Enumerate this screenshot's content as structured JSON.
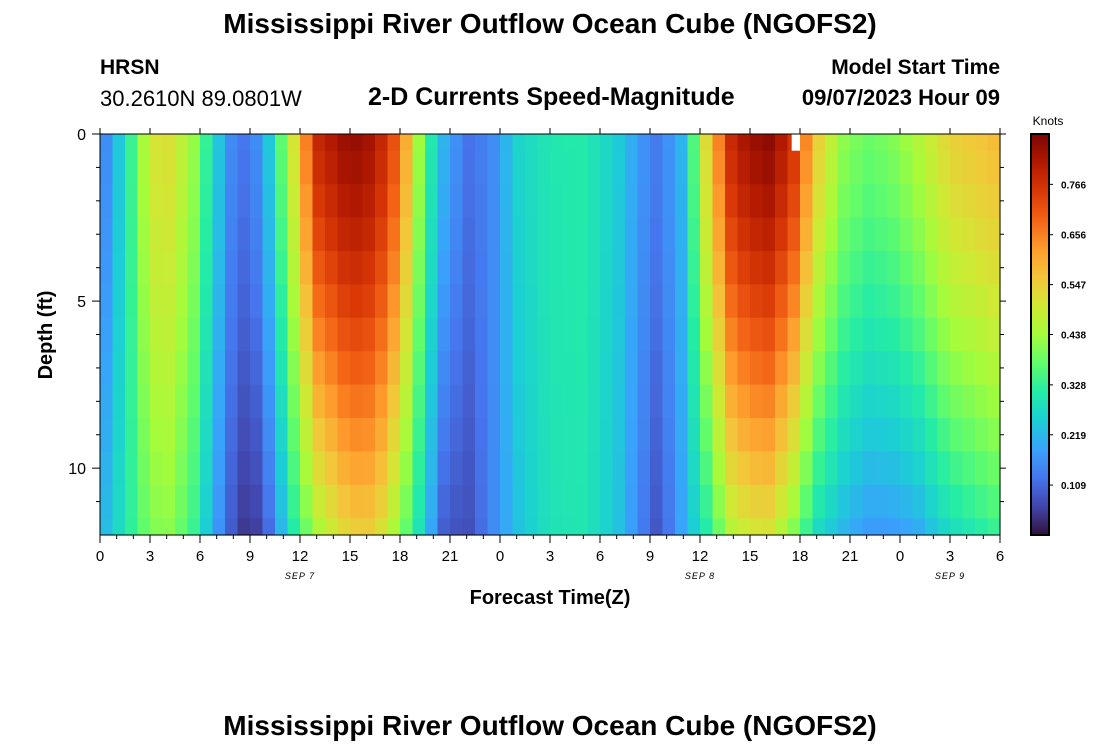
{
  "header": {
    "title": "Mississippi River Outflow Ocean Cube (NGOFS2)",
    "station": "HRSN",
    "coords": "30.2610N  89.0801W",
    "subtitle": "2-D Currents Speed-Magnitude",
    "model_start_label": "Model Start Time",
    "model_start_value": "09/07/2023 Hour 09"
  },
  "footer": {
    "title": "Mississippi River Outflow Ocean Cube (NGOFS2)"
  },
  "colors": {
    "colormap": [
      "#30123b",
      "#4145ab",
      "#4675ed",
      "#39a2fc",
      "#1bcfd4",
      "#24eca6",
      "#61fc6c",
      "#a4fc3b",
      "#d1e834",
      "#f3c63a",
      "#fe9b2d",
      "#f36315",
      "#d93806",
      "#b11901",
      "#7a0403"
    ],
    "missing": "#ffffff"
  },
  "chart_data": {
    "type": "heatmap",
    "xlabel": "Forecast Time(Z)",
    "ylabel": "Depth (ft)",
    "xlim": [
      0,
      54
    ],
    "ylim": [
      0,
      12
    ],
    "y_inverted": true,
    "x_tick_labels": [
      "0",
      "3",
      "6",
      "9",
      "12",
      "15",
      "18",
      "21",
      "0",
      "3",
      "6",
      "9",
      "12",
      "15",
      "18",
      "21",
      "0",
      "3",
      "6"
    ],
    "x_tick_hours": [
      0,
      3,
      6,
      9,
      12,
      15,
      18,
      21,
      24,
      27,
      30,
      33,
      36,
      39,
      42,
      45,
      48,
      51,
      54
    ],
    "date_labels": [
      {
        "label": "SEP 7",
        "hour": 12
      },
      {
        "label": "SEP 8",
        "hour": 36
      },
      {
        "label": "SEP 9",
        "hour": 51
      }
    ],
    "y_tick_labels": [
      "0",
      "5",
      "10"
    ],
    "y_tick_values": [
      0,
      5,
      10
    ],
    "colorbar": {
      "title": "Knots",
      "range": [
        0,
        0.876
      ],
      "tick_labels": [
        "0.766",
        "0.656",
        "0.547",
        "0.438",
        "0.328",
        "0.219",
        "0.109"
      ],
      "tick_values": [
        0.766,
        0.656,
        0.547,
        0.438,
        0.328,
        0.219,
        0.109
      ]
    },
    "grid": {
      "dx_hours": 0.75,
      "depths": [
        0,
        1,
        2,
        3,
        4,
        5,
        6,
        7,
        8,
        9,
        10,
        11,
        12
      ]
    },
    "speed_profiles": [
      {
        "hour": 0,
        "surface": 0.12,
        "bottom": 0.2
      },
      {
        "hour": 1.5,
        "surface": 0.28,
        "bottom": 0.3
      },
      {
        "hour": 3,
        "surface": 0.5,
        "bottom": 0.4
      },
      {
        "hour": 4,
        "surface": 0.52,
        "bottom": 0.42
      },
      {
        "hour": 5.5,
        "surface": 0.44,
        "bottom": 0.35
      },
      {
        "hour": 7,
        "surface": 0.25,
        "bottom": 0.18
      },
      {
        "hour": 8,
        "surface": 0.14,
        "bottom": 0.08
      },
      {
        "hour": 9,
        "surface": 0.12,
        "bottom": 0.03
      },
      {
        "hour": 10,
        "surface": 0.22,
        "bottom": 0.1
      },
      {
        "hour": 11.5,
        "surface": 0.48,
        "bottom": 0.3
      },
      {
        "hour": 13,
        "surface": 0.78,
        "bottom": 0.45
      },
      {
        "hour": 15,
        "surface": 0.85,
        "bottom": 0.55
      },
      {
        "hour": 16.5,
        "surface": 0.82,
        "bottom": 0.55
      },
      {
        "hour": 18,
        "surface": 0.68,
        "bottom": 0.42
      },
      {
        "hour": 19.5,
        "surface": 0.35,
        "bottom": 0.25
      },
      {
        "hour": 20.5,
        "surface": 0.22,
        "bottom": 0.1
      },
      {
        "hour": 22,
        "surface": 0.12,
        "bottom": 0.07
      },
      {
        "hour": 23.5,
        "surface": 0.15,
        "bottom": 0.15
      },
      {
        "hour": 25,
        "surface": 0.26,
        "bottom": 0.23
      },
      {
        "hour": 27,
        "surface": 0.3,
        "bottom": 0.29
      },
      {
        "hour": 29,
        "surface": 0.31,
        "bottom": 0.3
      },
      {
        "hour": 31,
        "surface": 0.25,
        "bottom": 0.24
      },
      {
        "hour": 32.5,
        "surface": 0.17,
        "bottom": 0.14
      },
      {
        "hour": 33.5,
        "surface": 0.13,
        "bottom": 0.08
      },
      {
        "hour": 35,
        "surface": 0.22,
        "bottom": 0.2
      },
      {
        "hour": 36.5,
        "surface": 0.55,
        "bottom": 0.32
      },
      {
        "hour": 38,
        "surface": 0.8,
        "bottom": 0.48
      },
      {
        "hour": 40,
        "surface": 0.86,
        "bottom": 0.52
      },
      {
        "hour": 41.5,
        "surface": 0.78,
        "bottom": 0.42
      },
      {
        "hour": 43,
        "surface": 0.55,
        "bottom": 0.28
      },
      {
        "hour": 44.5,
        "surface": 0.42,
        "bottom": 0.22
      },
      {
        "hour": 46,
        "surface": 0.38,
        "bottom": 0.18
      },
      {
        "hour": 47.5,
        "surface": 0.4,
        "bottom": 0.18
      },
      {
        "hour": 49,
        "surface": 0.45,
        "bottom": 0.2
      },
      {
        "hour": 51,
        "surface": 0.54,
        "bottom": 0.28
      },
      {
        "hour": 54,
        "surface": 0.58,
        "bottom": 0.34
      }
    ],
    "missing_cell": {
      "hour_start": 41.5,
      "hour_end": 42,
      "depth_start": 0,
      "depth_end": 0.5
    }
  }
}
